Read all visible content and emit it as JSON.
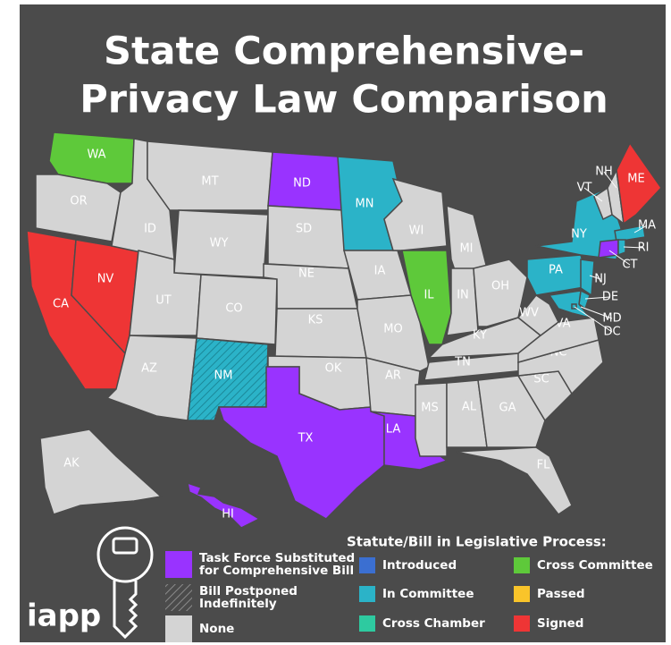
{
  "title": [
    "State Comprehensive-",
    "Privacy Law Comparison"
  ],
  "brand": "iapp",
  "legend_title": "Statute/Bill in Legislative Process:",
  "legend": [
    {
      "label": "Task Force Substituted\nfor Comprehensive Bill",
      "color": "#9933ff"
    },
    {
      "label": "Bill Postponed\nIndefinitely",
      "color": "#4b4b4b",
      "hatched": true
    },
    {
      "label": "None",
      "color": "#d4d4d4"
    },
    {
      "label": "Introduced",
      "color": "#3b6fd1"
    },
    {
      "label": "In Committee",
      "color": "#2bb3c8"
    },
    {
      "label": "Cross Chamber",
      "color": "#2ecaa0"
    },
    {
      "label": "Cross Committee",
      "color": "#5ec93a"
    },
    {
      "label": "Passed",
      "color": "#f9c42a"
    },
    {
      "label": "Signed",
      "color": "#ee3535"
    }
  ],
  "states": [
    {
      "abbr": "WA",
      "color": "#5ec93a"
    },
    {
      "abbr": "OR",
      "color": "#d4d4d4"
    },
    {
      "abbr": "CA",
      "color": "#ee3535"
    },
    {
      "abbr": "NV",
      "color": "#ee3535"
    },
    {
      "abbr": "ID",
      "color": "#d4d4d4"
    },
    {
      "abbr": "MT",
      "color": "#d4d4d4"
    },
    {
      "abbr": "WY",
      "color": "#d4d4d4"
    },
    {
      "abbr": "UT",
      "color": "#d4d4d4"
    },
    {
      "abbr": "CO",
      "color": "#d4d4d4"
    },
    {
      "abbr": "AZ",
      "color": "#d4d4d4"
    },
    {
      "abbr": "NM",
      "color": "#2bb3c8",
      "hatched": true
    },
    {
      "abbr": "ND",
      "color": "#9933ff"
    },
    {
      "abbr": "SD",
      "color": "#d4d4d4"
    },
    {
      "abbr": "NE",
      "color": "#d4d4d4"
    },
    {
      "abbr": "KS",
      "color": "#d4d4d4"
    },
    {
      "abbr": "OK",
      "color": "#d4d4d4"
    },
    {
      "abbr": "TX",
      "color": "#9933ff"
    },
    {
      "abbr": "MN",
      "color": "#2bb3c8"
    },
    {
      "abbr": "IA",
      "color": "#d4d4d4"
    },
    {
      "abbr": "MO",
      "color": "#d4d4d4"
    },
    {
      "abbr": "AR",
      "color": "#d4d4d4"
    },
    {
      "abbr": "LA",
      "color": "#9933ff"
    },
    {
      "abbr": "WI",
      "color": "#d4d4d4"
    },
    {
      "abbr": "IL",
      "color": "#5ec93a"
    },
    {
      "abbr": "MI",
      "color": "#d4d4d4"
    },
    {
      "abbr": "IN",
      "color": "#d4d4d4"
    },
    {
      "abbr": "OH",
      "color": "#d4d4d4"
    },
    {
      "abbr": "KY",
      "color": "#d4d4d4"
    },
    {
      "abbr": "TN",
      "color": "#d4d4d4"
    },
    {
      "abbr": "MS",
      "color": "#d4d4d4"
    },
    {
      "abbr": "AL",
      "color": "#d4d4d4"
    },
    {
      "abbr": "GA",
      "color": "#d4d4d4"
    },
    {
      "abbr": "FL",
      "color": "#d4d4d4"
    },
    {
      "abbr": "SC",
      "color": "#d4d4d4"
    },
    {
      "abbr": "NC",
      "color": "#d4d4d4"
    },
    {
      "abbr": "VA",
      "color": "#d4d4d4"
    },
    {
      "abbr": "WV",
      "color": "#d4d4d4"
    },
    {
      "abbr": "PA",
      "color": "#2bb3c8"
    },
    {
      "abbr": "NY",
      "color": "#2bb3c8"
    },
    {
      "abbr": "VT",
      "color": "#d4d4d4"
    },
    {
      "abbr": "NH",
      "color": "#d4d4d4"
    },
    {
      "abbr": "ME",
      "color": "#ee3535"
    },
    {
      "abbr": "MA",
      "color": "#2bb3c8"
    },
    {
      "abbr": "CT",
      "color": "#9933ff"
    },
    {
      "abbr": "RI",
      "color": "#2bb3c8"
    },
    {
      "abbr": "NJ",
      "color": "#2bb3c8"
    },
    {
      "abbr": "DE",
      "color": "#2bb3c8"
    },
    {
      "abbr": "MD",
      "color": "#2bb3c8"
    },
    {
      "abbr": "DC",
      "color": "#2bb3c8"
    },
    {
      "abbr": "AK",
      "color": "#d4d4d4"
    },
    {
      "abbr": "HI",
      "color": "#9933ff"
    }
  ]
}
